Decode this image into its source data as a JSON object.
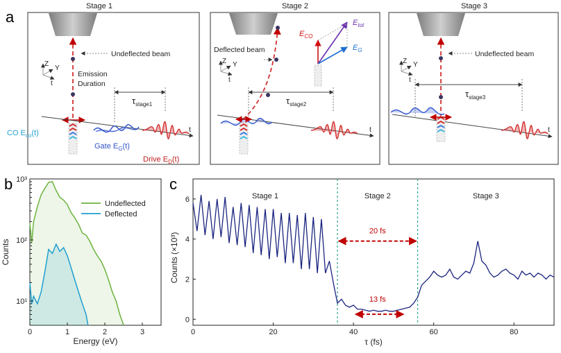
{
  "panels": {
    "a_label": "a",
    "b_label": "b",
    "c_label": "c"
  },
  "stage1": {
    "title": "Stage 1",
    "beam_label": "Undeflected beam",
    "emission_line1": "Emission",
    "emission_line2": "Duration",
    "tau_label": "τ",
    "tau_sub": "stage1",
    "co_label": "CO E",
    "co_sub": "co",
    "co_tail": "(t)",
    "gate_label": "Gate E",
    "gate_sub": "G",
    "gate_tail": "(t)",
    "drive_label": "Drive E",
    "drive_sub": "D",
    "drive_tail": "(t)",
    "t_label": "t",
    "axes_z": "Z",
    "axes_y": "Y",
    "axes_t": "t"
  },
  "stage2": {
    "title": "Stage 2",
    "beam_label": "Deflected beam",
    "tau_label": "τ",
    "tau_sub": "stage2",
    "t_label": "t",
    "vec_co": "E",
    "vec_co_sub": "CO",
    "vec_tot": "E",
    "vec_tot_sub": "tot",
    "vec_g": "E",
    "vec_g_sub": "G",
    "axes_z": "Z",
    "axes_y": "Y",
    "axes_t": "t"
  },
  "stage3": {
    "title": "Stage 3",
    "beam_label": "Undeflected beam",
    "tau_label": "τ",
    "tau_sub": "stage3",
    "t_label": "t",
    "axes_z": "Z",
    "axes_y": "Y",
    "axes_t": "t"
  },
  "colors": {
    "undeflected": "#6db33f",
    "deflected": "#1f9fd0",
    "trace": "#1a237e",
    "stage_divider": "#2ca58d",
    "arrow_red": "#c00000",
    "gate_blue": "#3355cc",
    "drive_red": "#d23030"
  },
  "chart_data": [
    {
      "type": "area",
      "panel": "b",
      "xlabel": "Energy (eV)",
      "ylabel": "Counts",
      "xlim": [
        0,
        3.5
      ],
      "ylim": [
        4,
        1000
      ],
      "yscale": "log",
      "xticks": [
        "0",
        "1",
        "2",
        "3"
      ],
      "yticks": [
        "10¹",
        "10²",
        "10³"
      ],
      "legend_position": "top-right",
      "series": [
        {
          "name": "Undeflected",
          "x": [
            0,
            0.05,
            0.1,
            0.2,
            0.3,
            0.4,
            0.5,
            0.6,
            0.7,
            0.8,
            0.9,
            1.0,
            1.1,
            1.2,
            1.3,
            1.4,
            1.5,
            1.6,
            1.7,
            1.8,
            1.9,
            2.0,
            2.1,
            2.2,
            2.3,
            2.4,
            2.5
          ],
          "values": [
            190,
            90,
            200,
            350,
            550,
            700,
            880,
            900,
            650,
            500,
            450,
            380,
            280,
            230,
            180,
            130,
            120,
            95,
            70,
            55,
            45,
            33,
            22,
            14,
            10,
            6,
            4
          ]
        },
        {
          "name": "Deflected",
          "x": [
            0,
            0.05,
            0.1,
            0.2,
            0.3,
            0.4,
            0.5,
            0.6,
            0.7,
            0.8,
            0.9,
            1.0,
            1.1,
            1.2,
            1.3,
            1.4,
            1.5,
            1.55
          ],
          "values": [
            20,
            9,
            12,
            9,
            14,
            30,
            70,
            60,
            85,
            65,
            75,
            55,
            35,
            22,
            14,
            9,
            6,
            4
          ]
        }
      ]
    },
    {
      "type": "line",
      "panel": "c",
      "xlabel": "τ (fs)",
      "ylabel": "Counts (×10³)",
      "xlim": [
        0,
        90
      ],
      "ylim": [
        -0.3,
        7
      ],
      "xticks": [
        "0",
        "20",
        "40",
        "60",
        "80"
      ],
      "yticks": [
        "0",
        "2",
        "4",
        "6"
      ],
      "stage_boundaries": [
        36,
        56
      ],
      "stage_labels": [
        "Stage 1",
        "Stage 2",
        "Stage 3"
      ],
      "annotations": [
        "20 fs",
        "13 fs"
      ],
      "series": [
        {
          "name": "",
          "x": [
            0,
            1,
            2,
            3,
            4,
            5,
            6,
            7,
            8,
            9,
            10,
            11,
            12,
            13,
            14,
            15,
            16,
            17,
            18,
            19,
            20,
            21,
            22,
            23,
            24,
            25,
            26,
            27,
            28,
            29,
            30,
            31,
            32,
            33,
            34,
            35,
            36,
            37,
            38,
            39,
            40,
            41,
            42,
            43,
            44,
            45,
            46,
            47,
            48,
            49,
            50,
            51,
            52,
            53,
            54,
            55,
            56,
            57,
            58,
            59,
            60,
            61,
            62,
            63,
            64,
            65,
            66,
            67,
            68,
            69,
            70,
            71,
            72,
            73,
            74,
            75,
            76,
            77,
            78,
            79,
            80,
            81,
            82,
            83,
            84,
            85,
            86,
            87,
            88,
            89,
            90
          ],
          "values": [
            5.8,
            4.4,
            6.2,
            4.2,
            5.9,
            4.0,
            6.0,
            4.1,
            6.1,
            3.8,
            5.6,
            3.7,
            5.8,
            3.6,
            5.7,
            3.3,
            5.6,
            3.2,
            5.5,
            3.0,
            5.5,
            3.1,
            5.3,
            2.8,
            5.3,
            2.8,
            5.2,
            2.5,
            5.3,
            2.5,
            5.1,
            2.3,
            5.0,
            2.3,
            2.9,
            1.8,
            0.8,
            1.0,
            0.7,
            0.6,
            0.7,
            0.5,
            0.5,
            0.45,
            0.4,
            0.45,
            0.4,
            0.4,
            0.45,
            0.4,
            0.4,
            0.45,
            0.5,
            0.55,
            0.6,
            0.8,
            1.1,
            1.7,
            1.9,
            2.1,
            2.4,
            2.2,
            2.1,
            2.2,
            2.5,
            2.1,
            2.0,
            2.2,
            2.4,
            2.3,
            2.8,
            3.9,
            2.9,
            2.7,
            2.3,
            2.1,
            2.2,
            2.4,
            2.5,
            2.3,
            2.2,
            2.0,
            2.4,
            2.2,
            2.3,
            2.1,
            2.3,
            2.2,
            2.0,
            2.2,
            2.1
          ]
        }
      ]
    }
  ]
}
